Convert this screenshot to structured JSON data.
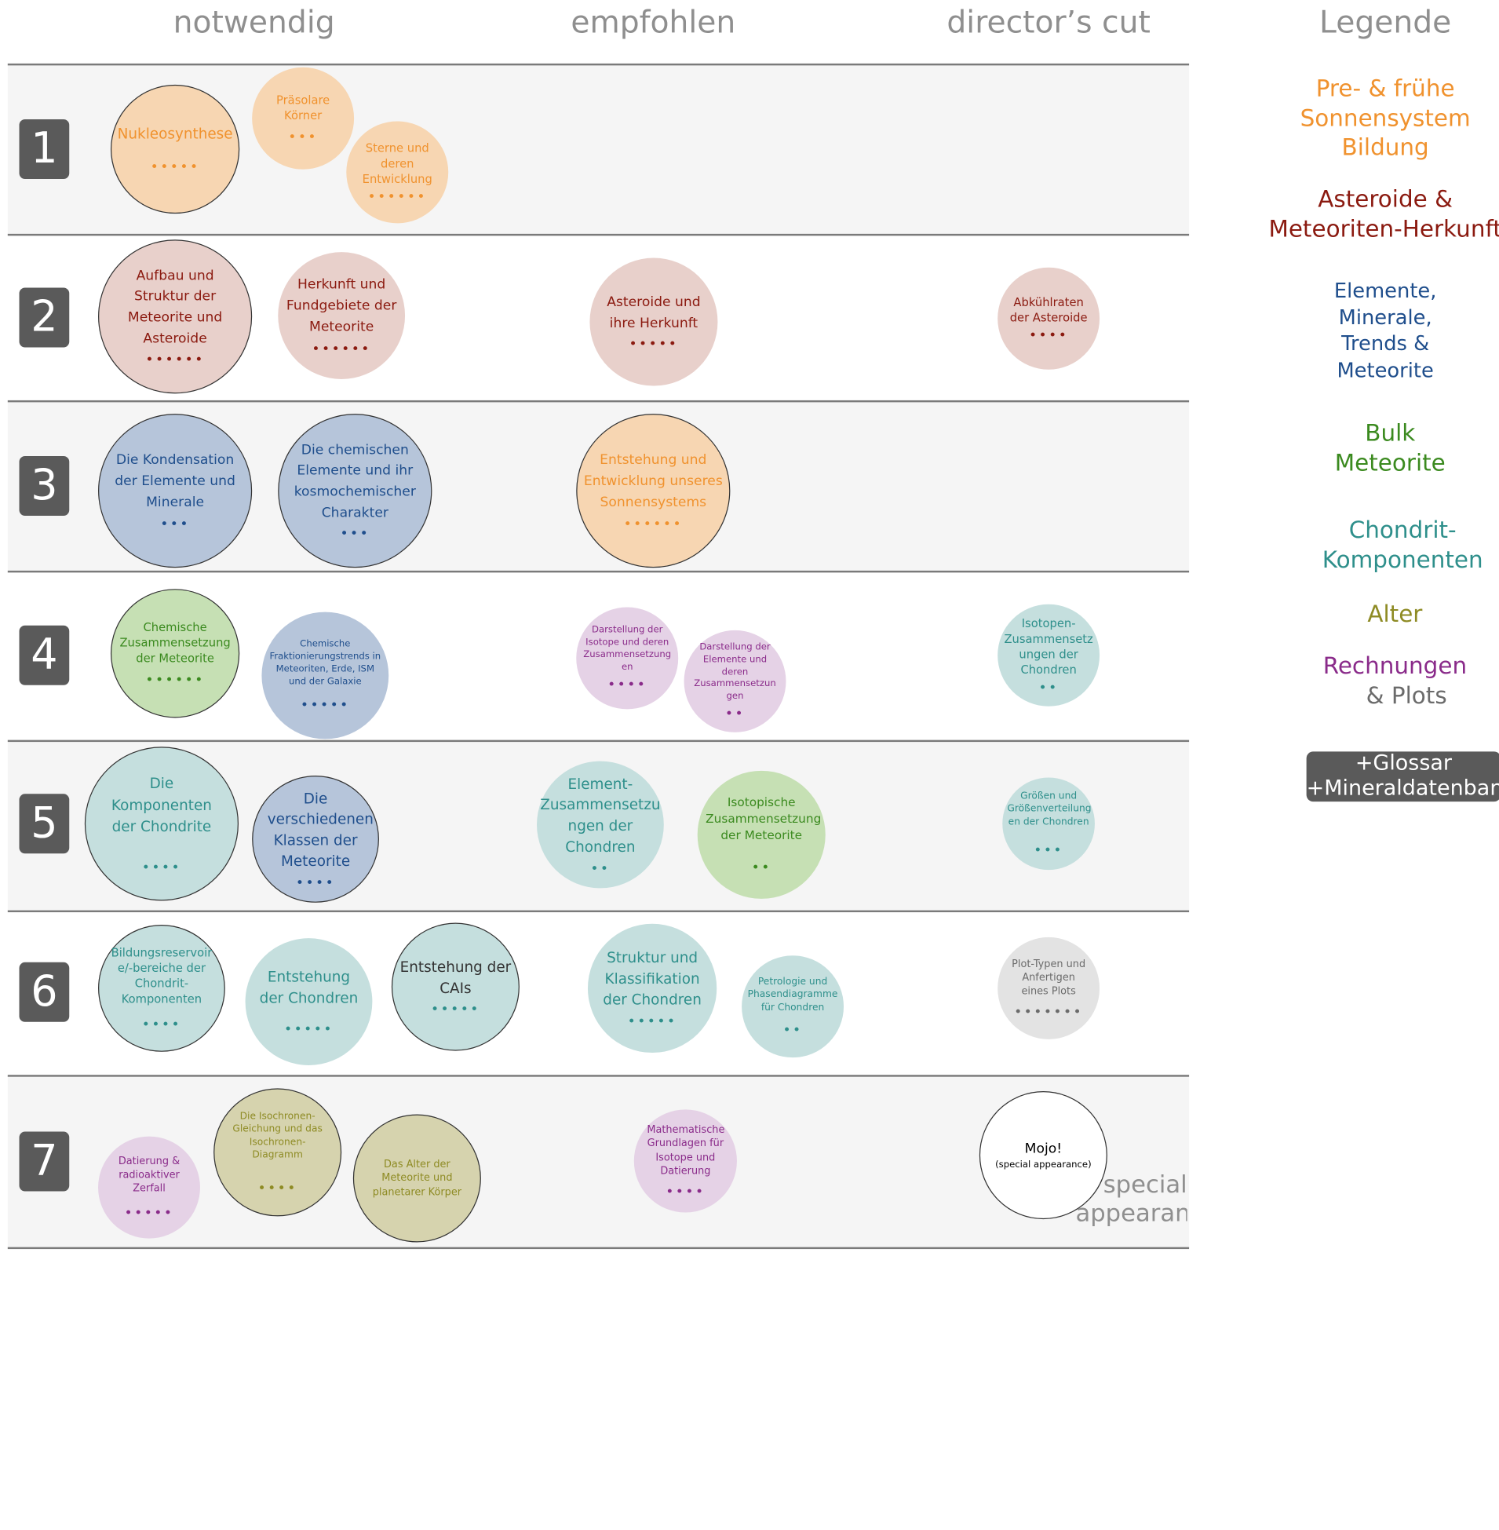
{
  "headers": {
    "col1": "notwendig",
    "col2": "empfohlen",
    "col3": "director’s cut",
    "legend": "Legende"
  },
  "rows": [
    "1",
    "2",
    "3",
    "4",
    "5",
    "6",
    "7"
  ],
  "bubbles": {
    "nukleosynthese": {
      "label": "Nukleosynthese",
      "dots": "•••••"
    },
    "praesolare": {
      "label": "Präsolare Körner",
      "dots": "•••"
    },
    "sterne": {
      "label": "Sterne und deren Entwicklung",
      "dots": "••••••"
    },
    "aufbau": {
      "label": "Aufbau und Struktur der Meteorite und Asteroide",
      "dots": "••••••"
    },
    "herkunft_fund": {
      "label": "Herkunft und Fundgebiete der Meteorite",
      "dots": "••••••"
    },
    "asteroide_herkunft": {
      "label": "Asteroide und ihre Herkunft",
      "dots": "•••••"
    },
    "abkuehlraten": {
      "label": "Abkühlraten der Asteroide",
      "dots": "••••"
    },
    "kondensation": {
      "label": "Die Kondensation der Elemente und Minerale",
      "dots": "•••"
    },
    "chemische_elemente": {
      "label": "Die chemischen Elemente und ihr kosmochemischer Charakter",
      "dots": "•••"
    },
    "entstehung_sonnensystem": {
      "label": "Entstehung und Entwicklung unseres Sonnensystems",
      "dots": "••••••"
    },
    "chem_zusammensetzung": {
      "label": "Chemische Zusammensetzung der Meteorite",
      "dots": "••••••"
    },
    "fraktionierung": {
      "label": "Chemische Fraktionierungstrends in Meteoriten, Erde, ISM und der Galaxie",
      "dots": "•••••"
    },
    "darst_isotope": {
      "label": "Darstellung der Isotope und deren Zusammensetzung en",
      "dots": "••••"
    },
    "darst_elemente": {
      "label": "Darstellung der Elemente und deren Zusammensetzun gen",
      "dots": "••"
    },
    "isotopen_chondren": {
      "label": "Isotopen-Zusammensetz ungen der Chondren",
      "dots": "••"
    },
    "komponenten_chondrite": {
      "label": "Die Komponenten der Chondrite",
      "dots": "••••"
    },
    "klassen": {
      "label": "Die verschiedenen Klassen der Meteorite",
      "dots": "••••"
    },
    "element_zus_chondren": {
      "label": "Element-Zusammensetzu ngen der Chondren",
      "dots": "••"
    },
    "isotopische": {
      "label": "Isotopische Zusammensetzung der Meteorite",
      "dots": "••"
    },
    "groessen": {
      "label": "Größen und Größenverteilung en der Chondren",
      "dots": "•••"
    },
    "bildungsreservoir": {
      "label": "Bildungsreservoir e/-bereiche der Chondrit-Komponenten",
      "dots": "••••"
    },
    "entstehung_chondren": {
      "label": "Entstehung der Chondren",
      "dots": "•••••"
    },
    "entstehung_cais": {
      "label": "Entstehung der CAIs",
      "dots": "•••••"
    },
    "struktur_chondren": {
      "label": "Struktur und Klassifikation der Chondren",
      "dots": "•••••"
    },
    "petrologie": {
      "label": "Petrologie und Phasendiagramme für Chondren",
      "dots": "••"
    },
    "plot_typen": {
      "label": "Plot-Typen und Anfertigen eines Plots",
      "dots": "•••••••"
    },
    "datierung": {
      "label": "Datierung & radioaktiver Zerfall",
      "dots": "•••••"
    },
    "isochronen": {
      "label": "Die Isochronen-Gleichung und das Isochronen-Diagramm",
      "dots": "••••"
    },
    "alter_meteorite": {
      "label": "Das Alter der Meteorite und planetarer Körper",
      "dots": ""
    },
    "mathematische": {
      "label": "Mathematische Grundlagen für Isotope und Datierung",
      "dots": "••••"
    },
    "mojo": {
      "label": "Mojo!",
      "sub": "(special appearance)"
    }
  },
  "legend": {
    "pre": "Pre- & frühe Sonnensystem Bildung",
    "asteroide": "Asteroide & Meteoriten-Herkunft",
    "elemente": "Elemente, Minerale, Trends & Meteorite",
    "bulk": "Bulk Meteorite",
    "chondrit": "Chondrit-Komponenten",
    "alter": "Alter",
    "rechnungen_a": "Rechnungen",
    "rechnungen_b": "& Plots"
  },
  "extras": {
    "line1": "+Glossar",
    "line2": "+Mineraldatenbank"
  },
  "special": {
    "line1": "special",
    "line2": "appearance"
  },
  "colors": {
    "orange_text": "#f0922e",
    "orange_fill": "#f7d6b2",
    "red_text": "#8b1a10",
    "red_fill": "#e8d0cb",
    "blue_text": "#1f4e8c",
    "blue_fill": "#b6c5da",
    "green_text": "#3b8a1f",
    "green_fill": "#c6e0b4",
    "teal_text": "#2e8f8b",
    "teal_fill": "#c5dfde",
    "olive_text": "#8e8b24",
    "olive_fill": "#d6d3ae",
    "purple_text": "#8a2b8a",
    "purple_fill": "#e5d2e6",
    "gray_text": "#6b6b6b",
    "gray_fill": "#e3e3e3"
  }
}
